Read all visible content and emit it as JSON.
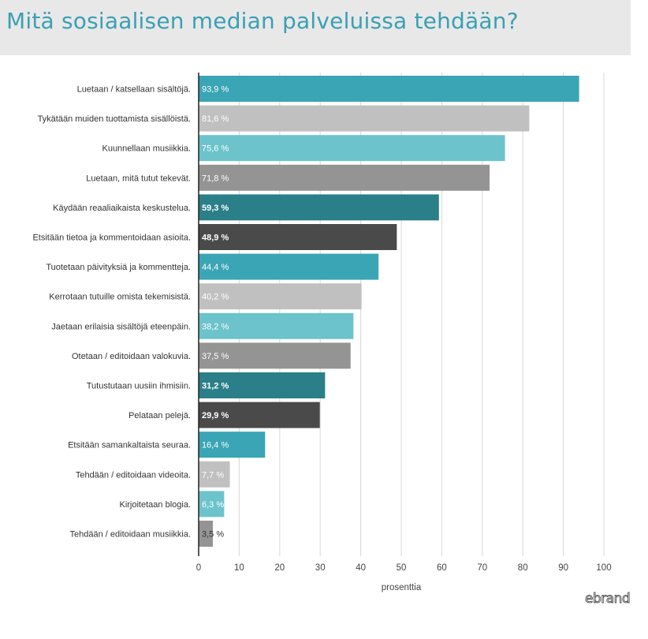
{
  "header": {
    "title": "Mitä sosiaalisen median palveluissa tehdään?"
  },
  "brand": {
    "logo_text": "ebrand"
  },
  "chart_data": {
    "type": "bar",
    "orientation": "horizontal",
    "title": "Mitä sosiaalisen median palveluissa tehdään?",
    "xlabel": "prosenttia",
    "ylabel": "",
    "xlim": [
      0,
      100
    ],
    "x_ticks": [
      0,
      10,
      20,
      30,
      40,
      50,
      60,
      70,
      80,
      90,
      100
    ],
    "grid": "vertical",
    "categories": [
      "Luetaan / katsellaan sisältöjä.",
      "Tykätään muiden tuottamista sisällöistä.",
      "Kuunnellaan musiikkia.",
      "Luetaan, mitä tutut tekevät.",
      "Käydään reaaliaikaista keskustelua.",
      "Etsitään tietoa ja kommentoidaan asioita.",
      "Tuotetaan päivityksiä ja kommentteja.",
      "Kerrotaan tutuille omista tekemisistä.",
      "Jaetaan erilaisia sisältöjä eteenpäin.",
      "Otetaan / editoidaan valokuvia.",
      "Tutustutaan uusiin ihmisiin.",
      "Pelataan pelejä.",
      "Etsitään samankaltaista seuraa.",
      "Tehdään / editoidaan videoita.",
      "Kirjoitetaan blogia.",
      "Tehdään / editoidaan musiikkia."
    ],
    "values": [
      93.9,
      81.6,
      75.6,
      71.8,
      59.3,
      48.9,
      44.4,
      40.2,
      38.2,
      37.5,
      31.2,
      29.9,
      16.4,
      7.7,
      6.3,
      3.5
    ],
    "value_labels": [
      "93,9 %",
      "81,6 %",
      "75,6 %",
      "71,8 %",
      "59,3 %",
      "48,9 %",
      "44,4 %",
      "40,2 %",
      "38,2 %",
      "37,5 %",
      "31,2 %",
      "29,9 %",
      "16,4 %",
      "7,7 %",
      "6,3 %",
      "3,5 %"
    ],
    "colors": [
      "#3aa5b5",
      "#c0c0c0",
      "#6cc3cc",
      "#949494",
      "#2a7f88",
      "#4a4a4a",
      "#3aa5b5",
      "#c0c0c0",
      "#6cc3cc",
      "#949494",
      "#2a7f88",
      "#4a4a4a",
      "#3aa5b5",
      "#c0c0c0",
      "#6cc3cc",
      "#949494"
    ],
    "label_colors": [
      "#ffffff",
      "#ffffff",
      "#ffffff",
      "#ffffff",
      "#ffffff",
      "#ffffff",
      "#ffffff",
      "#ffffff",
      "#ffffff",
      "#ffffff",
      "#ffffff",
      "#ffffff",
      "#ffffff",
      "#ffffff",
      "#ffffff",
      "#333333"
    ],
    "label_bold": [
      false,
      false,
      false,
      false,
      true,
      true,
      false,
      false,
      false,
      false,
      true,
      true,
      false,
      false,
      false,
      false
    ]
  }
}
